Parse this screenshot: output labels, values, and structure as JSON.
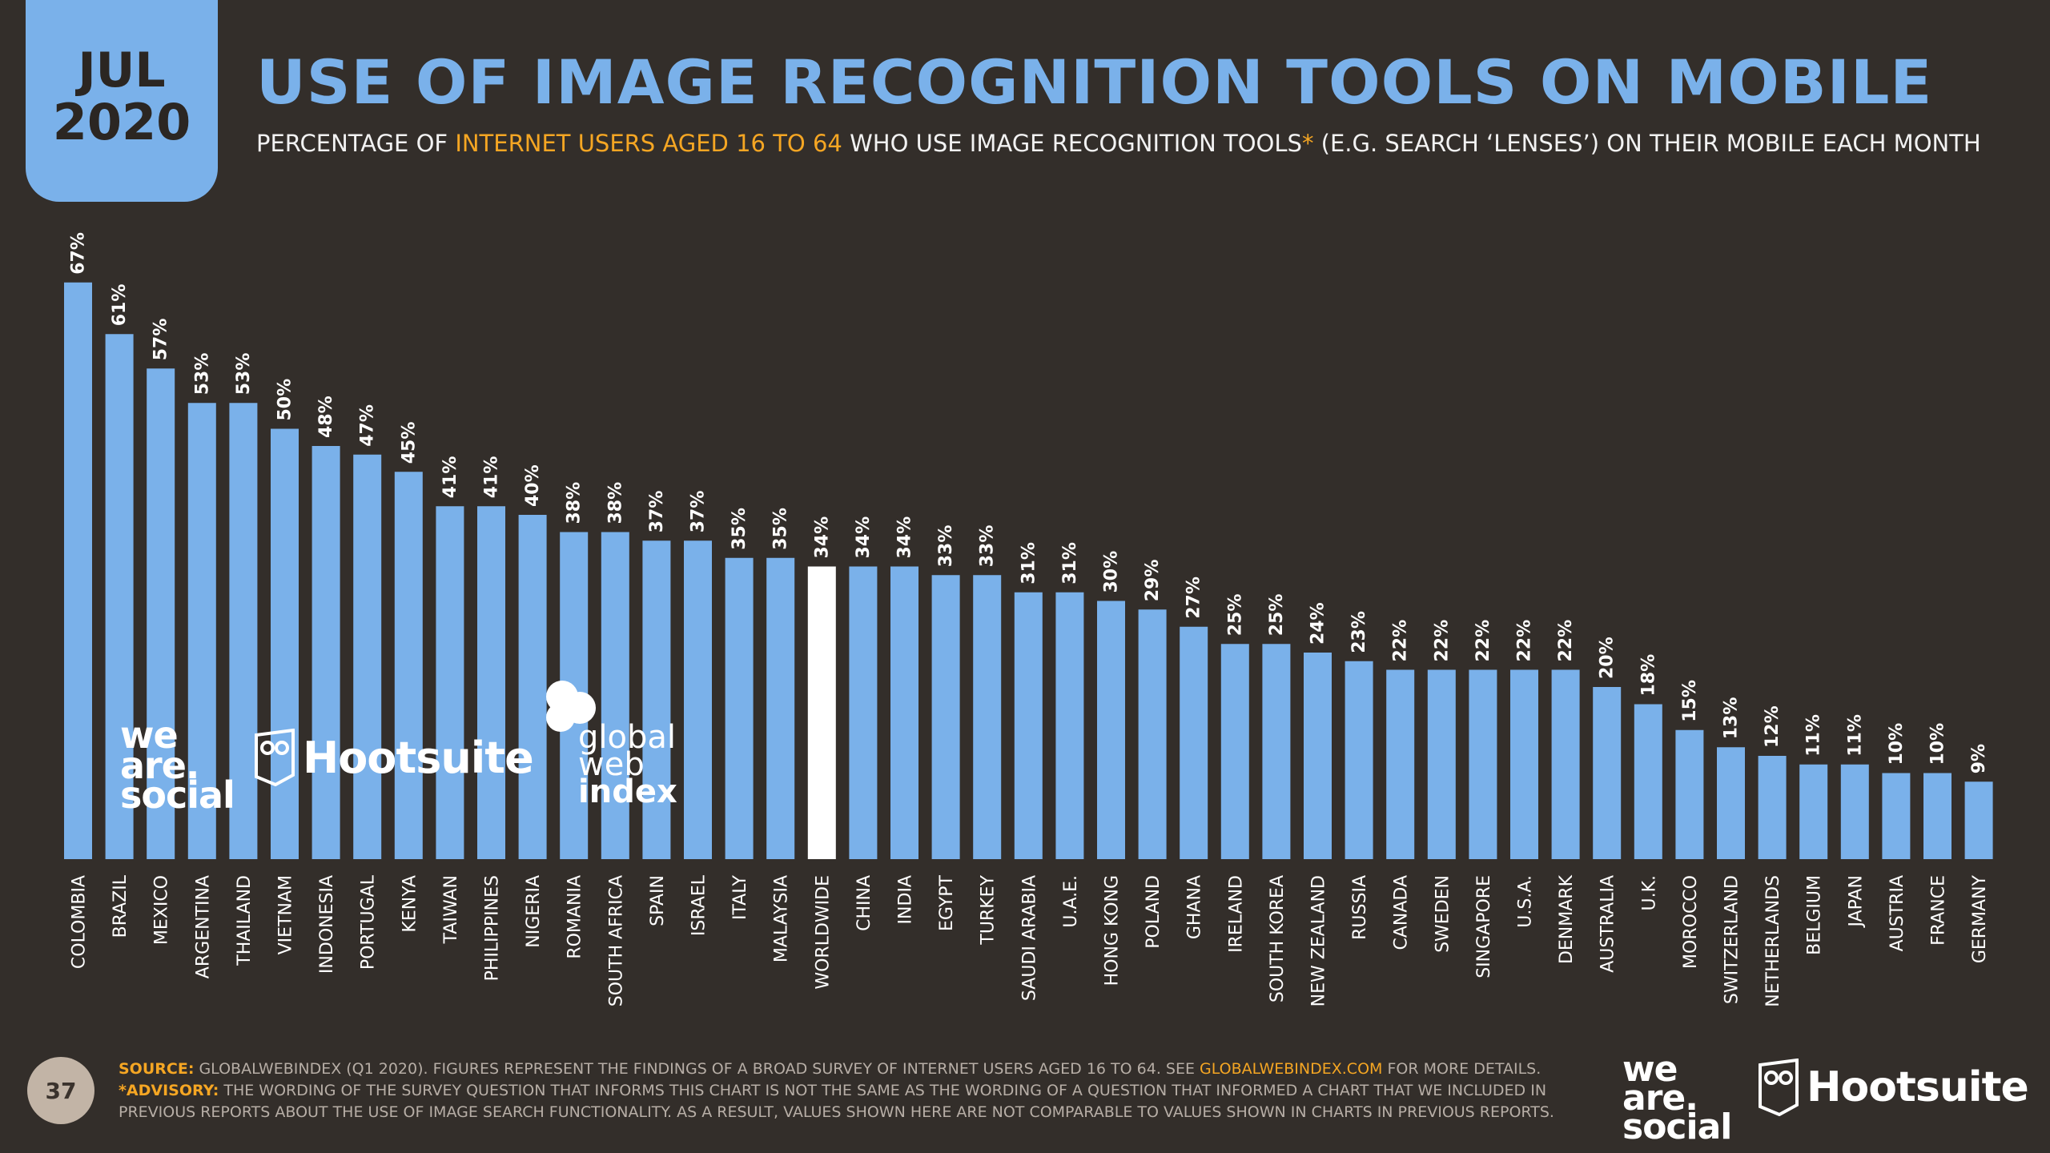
{
  "header": {
    "month": "JUL",
    "year": "2020",
    "title": "USE OF IMAGE RECOGNITION TOOLS ON MOBILE",
    "subtitle_part1": "PERCENTAGE OF ",
    "subtitle_highlight1": "INTERNET USERS AGED 16 TO 64",
    "subtitle_part2": " WHO USE IMAGE RECOGNITION TOOLS",
    "subtitle_asterisk": "*",
    "subtitle_part3": " (E.G. SEARCH ‘LENSES’) ON THEIR MOBILE EACH MONTH"
  },
  "colors": {
    "background": "#332e2a",
    "bar": "#7ab1ea",
    "highlight_bar": "#ffffff",
    "accent": "#f5a623"
  },
  "chart_data": {
    "type": "bar",
    "title": "USE OF IMAGE RECOGNITION TOOLS ON MOBILE",
    "xlabel": "",
    "ylabel": "Percentage of internet users aged 16 to 64",
    "ylim": [
      0,
      70
    ],
    "grid": false,
    "highlight": "WORLDWIDE",
    "categories": [
      "COLOMBIA",
      "BRAZIL",
      "MEXICO",
      "ARGENTINA",
      "THAILAND",
      "VIETNAM",
      "INDONESIA",
      "PORTUGAL",
      "KENYA",
      "TAIWAN",
      "PHILIPPINES",
      "NIGERIA",
      "ROMANIA",
      "SOUTH AFRICA",
      "SPAIN",
      "ISRAEL",
      "ITALY",
      "MALAYSIA",
      "WORLDWIDE",
      "CHINA",
      "INDIA",
      "EGYPT",
      "TURKEY",
      "SAUDI ARABIA",
      "U.A.E.",
      "HONG KONG",
      "POLAND",
      "GHANA",
      "IRELAND",
      "SOUTH KOREA",
      "NEW ZEALAND",
      "RUSSIA",
      "CANADA",
      "SWEDEN",
      "SINGAPORE",
      "U.S.A.",
      "DENMARK",
      "AUSTRALIA",
      "U.K.",
      "MOROCCO",
      "SWITZERLAND",
      "NETHERLANDS",
      "BELGIUM",
      "JAPAN",
      "AUSTRIA",
      "FRANCE",
      "GERMANY"
    ],
    "values": [
      67,
      61,
      57,
      53,
      53,
      50,
      48,
      47,
      45,
      41,
      41,
      40,
      38,
      38,
      37,
      37,
      35,
      35,
      34,
      34,
      34,
      33,
      33,
      31,
      31,
      30,
      29,
      27,
      25,
      25,
      24,
      23,
      22,
      22,
      22,
      22,
      22,
      20,
      18,
      15,
      13,
      12,
      11,
      11,
      10,
      10,
      9
    ],
    "labels": [
      "67%",
      "61%",
      "57%",
      "53%",
      "53%",
      "50%",
      "48%",
      "47%",
      "45%",
      "41%",
      "41%",
      "40%",
      "38%",
      "38%",
      "37%",
      "37%",
      "35%",
      "35%",
      "34%",
      "34%",
      "34%",
      "33%",
      "33%",
      "31%",
      "31%",
      "30%",
      "29%",
      "27%",
      "25%",
      "25%",
      "24%",
      "23%",
      "22%",
      "22%",
      "22%",
      "22%",
      "22%",
      "20%",
      "18%",
      "15%",
      "13%",
      "12%",
      "11%",
      "11%",
      "10%",
      "10%",
      "9%"
    ]
  },
  "logos": {
    "we_are_social": [
      "we",
      "are.",
      "social"
    ],
    "hootsuite": "Hootsuite",
    "gwi": [
      "global",
      "web",
      "index"
    ]
  },
  "footer": {
    "page_number": "37",
    "source_label": "SOURCE:",
    "source_text": " GLOBALWEBINDEX (Q1 2020). FIGURES REPRESENT THE FINDINGS OF A BROAD SURVEY OF INTERNET USERS AGED 16 TO 64. SEE ",
    "source_link": "GLOBALWEBINDEX.COM",
    "source_end": " FOR MORE DETAILS.",
    "advisory_label": "*ADVISORY:",
    "advisory_text": " THE WORDING OF THE SURVEY QUESTION THAT INFORMS THIS CHART IS NOT THE SAME AS THE WORDING OF A QUESTION THAT INFORMED A CHART THAT WE INCLUDED IN PREVIOUS REPORTS ABOUT THE USE OF IMAGE SEARCH FUNCTIONALITY. AS A RESULT, VALUES SHOWN HERE ARE NOT COMPARABLE TO VALUES SHOWN IN CHARTS IN PREVIOUS REPORTS."
  }
}
